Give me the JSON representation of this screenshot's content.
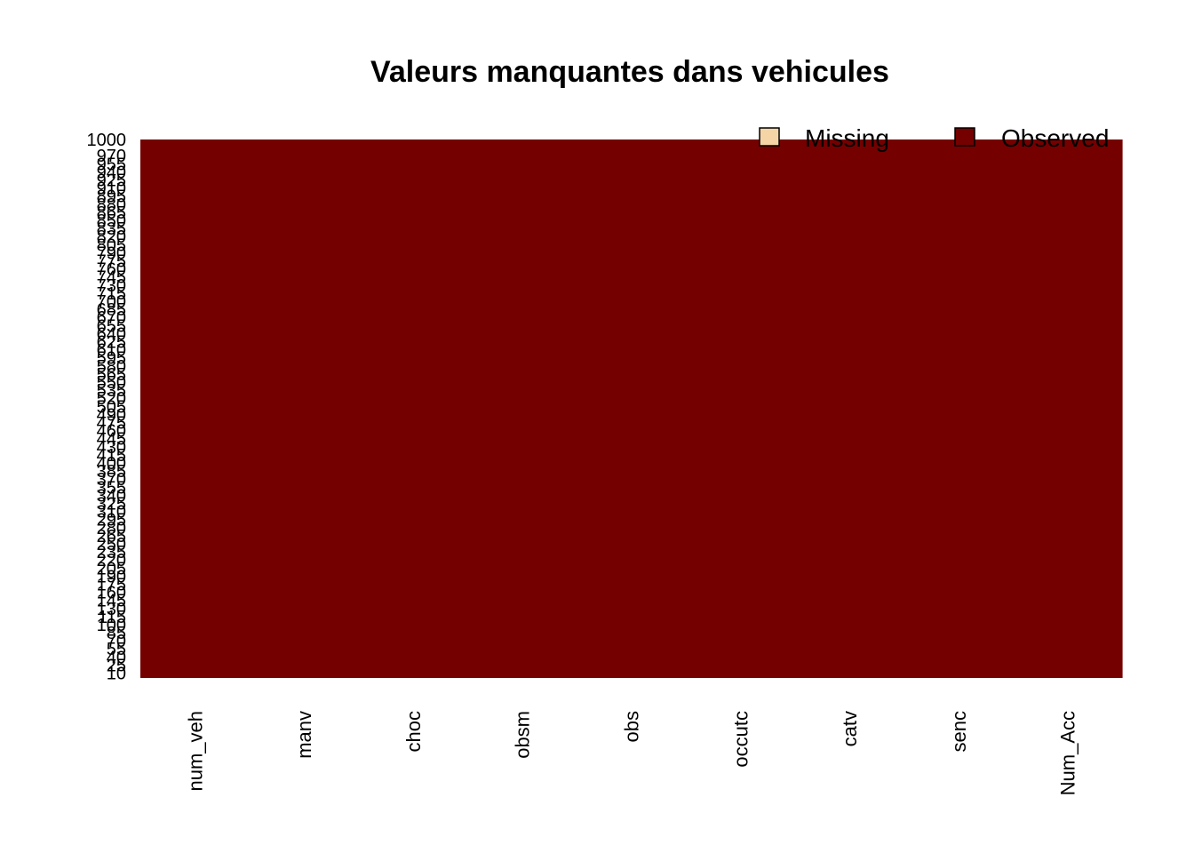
{
  "chart_data": {
    "type": "heatmap",
    "title": "Valeurs manquantes dans vehicules",
    "xlabel": "",
    "ylabel": "",
    "columns": [
      "num_veh",
      "manv",
      "choc",
      "obsm",
      "obs",
      "occutc",
      "catv",
      "senc",
      "Num_Acc"
    ],
    "row_range": [
      1,
      1000
    ],
    "y_ticks": [
      1000,
      970,
      955,
      940,
      925,
      910,
      895,
      880,
      865,
      850,
      835,
      820,
      805,
      790,
      775,
      760,
      745,
      730,
      715,
      700,
      685,
      670,
      655,
      640,
      625,
      610,
      595,
      580,
      565,
      550,
      535,
      520,
      505,
      490,
      475,
      460,
      445,
      430,
      415,
      400,
      385,
      370,
      355,
      340,
      325,
      310,
      295,
      280,
      265,
      250,
      235,
      220,
      205,
      190,
      175,
      160,
      145,
      130,
      115,
      100,
      85,
      70,
      55,
      40,
      25,
      10
    ],
    "missing_counts": [
      0,
      0,
      0,
      0,
      0,
      0,
      0,
      0,
      0
    ],
    "legend": {
      "placement": "top-right",
      "entries": [
        {
          "label": "Missing",
          "color": "#F5D5A6"
        },
        {
          "label": "Observed",
          "color": "#750000"
        }
      ]
    },
    "grid": false
  }
}
